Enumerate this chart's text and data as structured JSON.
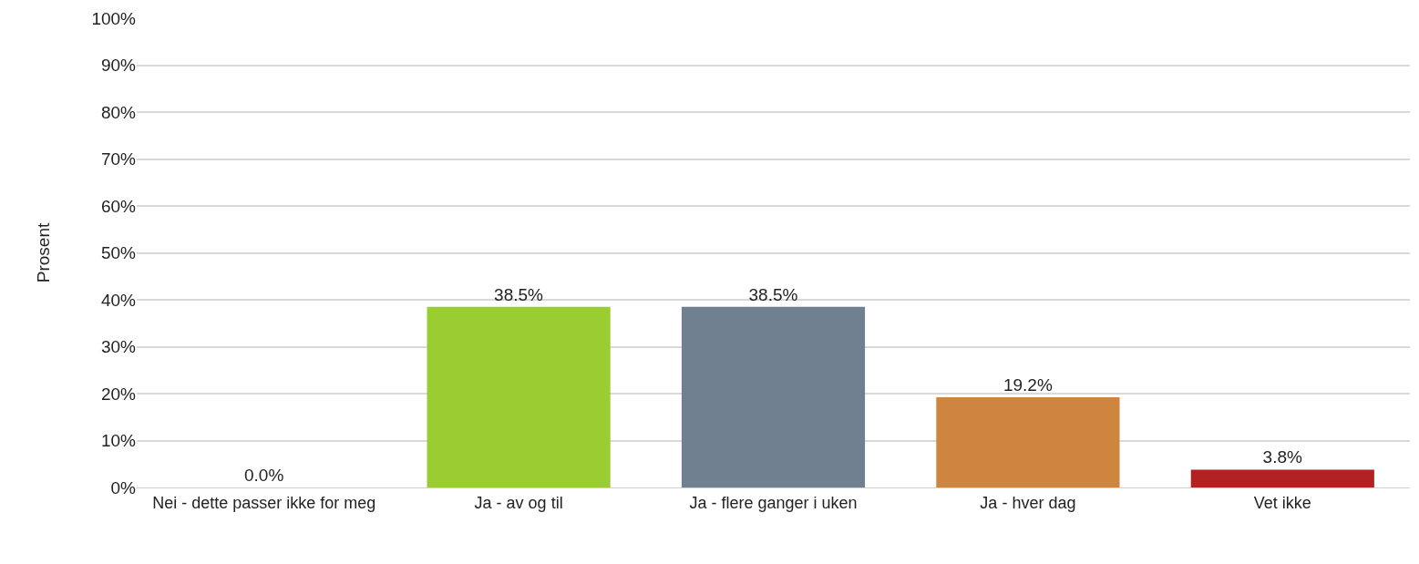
{
  "chart_data": {
    "type": "bar",
    "ylabel": "Prosent",
    "categories": [
      "Nei - dette passer ikke for meg",
      "Ja - av og til",
      "Ja - flere ganger i uken",
      "Ja - hver dag",
      "Vet ikke"
    ],
    "values": [
      0,
      38.5,
      38.5,
      19.2,
      3.8
    ],
    "colors": [
      "#9acd32",
      "#9acd32",
      "#708090",
      "#cd853f",
      "#b22222"
    ],
    "value_labels": [
      "0.0%",
      "38.5%",
      "38.5%",
      "19.2%",
      "3.8%"
    ],
    "ylim": [
      0,
      100
    ],
    "yticks": [
      {
        "value": 0,
        "label": "0%"
      },
      {
        "value": 10,
        "label": "10%"
      },
      {
        "value": 20,
        "label": "20%"
      },
      {
        "value": 30,
        "label": "30%"
      },
      {
        "value": 40,
        "label": "40%"
      },
      {
        "value": 50,
        "label": "50%"
      },
      {
        "value": 60,
        "label": "60%"
      },
      {
        "value": 70,
        "label": "70%"
      },
      {
        "value": 80,
        "label": "80%"
      },
      {
        "value": 90,
        "label": "90%"
      },
      {
        "value": 100,
        "label": "100%"
      }
    ],
    "grid": "y"
  }
}
